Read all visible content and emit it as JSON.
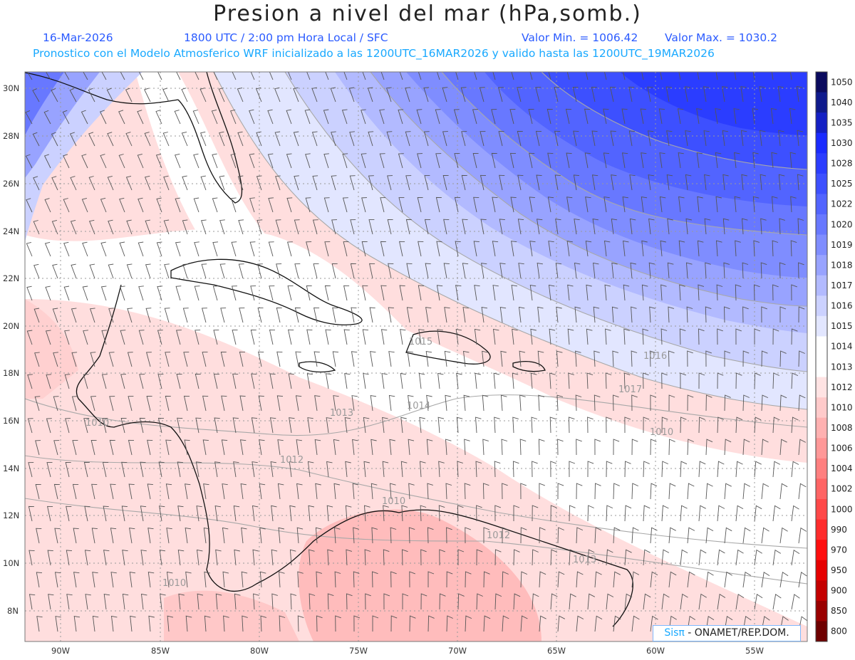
{
  "header": {
    "title": "Presion a nivel del mar (hPa,somb.)",
    "date": "16-Mar-2026",
    "time": "1800 UTC / 2:00 pm Hora Local / SFC",
    "min": "Valor Min. = 1006.42",
    "max": "Valor Max. = 1030.2",
    "forecast": "Pronostico con el Modelo Atmosferico WRF inicializado a las 1200UTC_16MAR2026 y valido hasta las  1200UTC_19MAR2026"
  },
  "credit": {
    "brand": "Sisπ",
    "text": " - ONAMET/REP.DOM."
  },
  "axes": {
    "lat_labels": [
      "30N",
      "28N",
      "26N",
      "24N",
      "22N",
      "20N",
      "18N",
      "16N",
      "14N",
      "12N",
      "10N",
      "8N"
    ],
    "lon_labels": [
      "90W",
      "85W",
      "80W",
      "75W",
      "70W",
      "65W",
      "60W",
      "55W"
    ]
  },
  "colorbar": {
    "labels": [
      "1050",
      "1040",
      "1035",
      "1030",
      "1028",
      "1025",
      "1022",
      "1020",
      "1019",
      "1018",
      "1017",
      "1016",
      "1015",
      "1014",
      "1013",
      "1012",
      "1010",
      "1008",
      "1006",
      "1004",
      "1002",
      "1000",
      "990",
      "970",
      "950",
      "900",
      "850",
      "800"
    ],
    "colors": [
      "#0b0b5e",
      "#0f1a8c",
      "#1420c4",
      "#1a2bff",
      "#2b3dff",
      "#3d50ff",
      "#5264ff",
      "#6878ff",
      "#7f8dff",
      "#98a3ff",
      "#b2baff",
      "#cbd1ff",
      "#e2e6ff",
      "#ffffff",
      "#ffffff",
      "#ffe3e3",
      "#ffcaca",
      "#ffb1b1",
      "#ff9898",
      "#ff7f7f",
      "#ff6464",
      "#ff4848",
      "#ff2c2c",
      "#ff0e0e",
      "#e60000",
      "#c40000",
      "#9a0000",
      "#6e0000"
    ]
  },
  "contour_labels": [
    "1015",
    "1013",
    "1014",
    "1012",
    "1010",
    "1012",
    "1010",
    "1010",
    "1013",
    "1016",
    "1017",
    "1010"
  ],
  "colors": {
    "header_blue": "#2b5bff",
    "header_cyan": "#19a9ff"
  }
}
